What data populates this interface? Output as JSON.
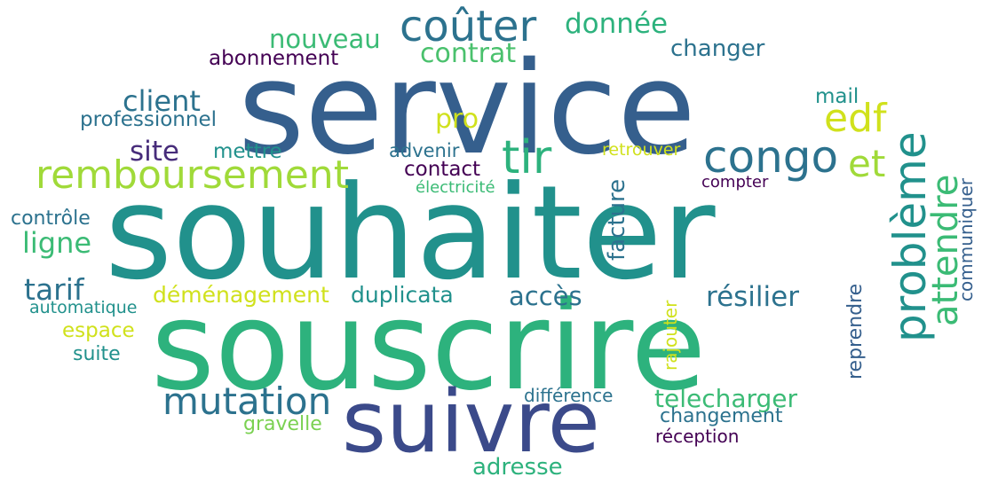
{
  "words": [
    {
      "text": "service",
      "color": "#355f8d"
    },
    {
      "text": "souhaiter",
      "color": "#21918c"
    },
    {
      "text": "souscrire",
      "color": "#2db27d"
    },
    {
      "text": "suivre",
      "color": "#3b4a8a"
    },
    {
      "text": "coûter",
      "color": "#2c728e"
    },
    {
      "text": "donnée",
      "color": "#2db27d"
    },
    {
      "text": "nouveau",
      "color": "#3bbb75"
    },
    {
      "text": "contrat",
      "color": "#4ac16d"
    },
    {
      "text": "changer",
      "color": "#2c728e"
    },
    {
      "text": "abonnement",
      "color": "#440154"
    },
    {
      "text": "client",
      "color": "#2c728e"
    },
    {
      "text": "edf",
      "color": "#d0e11c"
    },
    {
      "text": "professionnel",
      "color": "#2c728e"
    },
    {
      "text": "pro",
      "color": "#d0e11c"
    },
    {
      "text": "mail",
      "color": "#21918c"
    },
    {
      "text": "site",
      "color": "#472c7a"
    },
    {
      "text": "mettre",
      "color": "#21918c"
    },
    {
      "text": "tir",
      "color": "#2db27d"
    },
    {
      "text": "congo",
      "color": "#2c728e"
    },
    {
      "text": "et",
      "color": "#a0da39"
    },
    {
      "text": "remboursement",
      "color": "#a0da39"
    },
    {
      "text": "advenir",
      "color": "#2c728e"
    },
    {
      "text": "retrouver",
      "color": "#d0e11c"
    },
    {
      "text": "contact",
      "color": "#440154"
    },
    {
      "text": "compter",
      "color": "#440154"
    },
    {
      "text": "électricité",
      "color": "#3bbb75"
    },
    {
      "text": "contrôle",
      "color": "#2c728e"
    },
    {
      "text": "ligne",
      "color": "#3bbb75"
    },
    {
      "text": "tarif",
      "color": "#2c728e"
    },
    {
      "text": "déménagement",
      "color": "#d0e11c"
    },
    {
      "text": "duplicata",
      "color": "#21918c"
    },
    {
      "text": "accès",
      "color": "#2c728e"
    },
    {
      "text": "résilier",
      "color": "#2c728e"
    },
    {
      "text": "automatique",
      "color": "#21918c"
    },
    {
      "text": "espace",
      "color": "#d0e11c"
    },
    {
      "text": "suite",
      "color": "#21918c"
    },
    {
      "text": "mutation",
      "color": "#2c728e"
    },
    {
      "text": "telecharger",
      "color": "#3bbb75"
    },
    {
      "text": "différence",
      "color": "#2c728e"
    },
    {
      "text": "changement",
      "color": "#2c728e"
    },
    {
      "text": "gravelle",
      "color": "#7ad151"
    },
    {
      "text": "réception",
      "color": "#440154"
    },
    {
      "text": "adresse",
      "color": "#2db27d"
    },
    {
      "text": "problème",
      "color": "#21918c"
    },
    {
      "text": "attendre",
      "color": "#3bbb75"
    },
    {
      "text": "facture",
      "color": "#2c728e"
    },
    {
      "text": "communiquer",
      "color": "#355f8d"
    },
    {
      "text": "reprendre",
      "color": "#355f8d"
    },
    {
      "text": "rajouter",
      "color": "#d0e11c"
    }
  ]
}
